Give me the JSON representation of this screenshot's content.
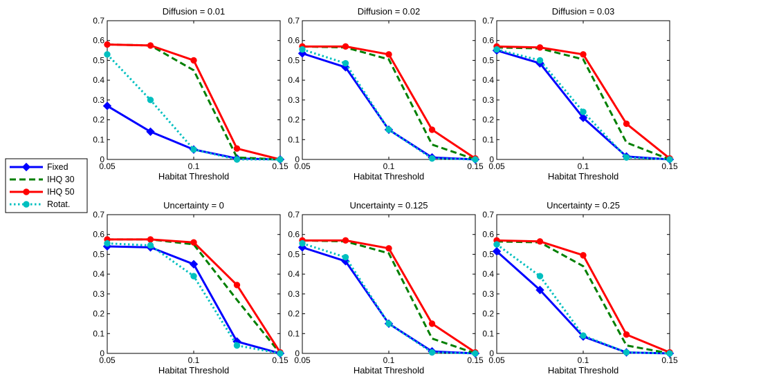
{
  "legend": {
    "placement": "left-middle",
    "entries": [
      {
        "name": "Fixed",
        "color": "#0000ff",
        "style": "solid",
        "marker": "diamond"
      },
      {
        "name": "IHQ 30",
        "color": "#007f00",
        "style": "dashed",
        "marker": "none"
      },
      {
        "name": "IHQ 50",
        "color": "#ff0000",
        "style": "solid",
        "marker": "circle"
      },
      {
        "name": "Rotat.",
        "color": "#00bfbf",
        "style": "dotted",
        "marker": "circle"
      }
    ]
  },
  "chart_data": [
    {
      "type": "line",
      "title": "Diffusion = 0.01",
      "xlabel": "Habitat Threshold",
      "ylabel": "",
      "x": [
        0.05,
        0.075,
        0.1,
        0.125,
        0.15
      ],
      "xlim": [
        0.05,
        0.15
      ],
      "ylim": [
        0,
        0.7
      ],
      "xticks": [
        "0.05",
        "0.1",
        "0.15"
      ],
      "yticks": [
        "0",
        "0.1",
        "0.2",
        "0.3",
        "0.4",
        "0.5",
        "0.6",
        "0.7"
      ],
      "grid": false,
      "series": [
        {
          "name": "Fixed",
          "values": [
            0.27,
            0.14,
            0.05,
            0.005,
            0.0
          ]
        },
        {
          "name": "IHQ 30",
          "values": [
            0.58,
            0.575,
            0.45,
            0.01,
            0.0
          ]
        },
        {
          "name": "IHQ 50",
          "values": [
            0.58,
            0.575,
            0.5,
            0.055,
            0.0
          ]
        },
        {
          "name": "Rotat.",
          "values": [
            0.53,
            0.3,
            0.05,
            0.0,
            0.0
          ]
        }
      ]
    },
    {
      "type": "line",
      "title": "Diffusion = 0.02",
      "xlabel": "Habitat Threshold",
      "ylabel": "",
      "x": [
        0.05,
        0.075,
        0.1,
        0.125,
        0.15
      ],
      "xlim": [
        0.05,
        0.15
      ],
      "ylim": [
        0,
        0.7
      ],
      "xticks": [
        "0.05",
        "0.1",
        "0.15"
      ],
      "yticks": [
        "0",
        "0.1",
        "0.2",
        "0.3",
        "0.4",
        "0.5",
        "0.6",
        "0.7"
      ],
      "grid": false,
      "series": [
        {
          "name": "Fixed",
          "values": [
            0.535,
            0.465,
            0.15,
            0.01,
            0.0
          ]
        },
        {
          "name": "IHQ 30",
          "values": [
            0.57,
            0.565,
            0.505,
            0.075,
            0.0
          ]
        },
        {
          "name": "IHQ 50",
          "values": [
            0.57,
            0.57,
            0.53,
            0.15,
            0.005
          ]
        },
        {
          "name": "Rotat.",
          "values": [
            0.555,
            0.485,
            0.15,
            0.005,
            0.0
          ]
        }
      ]
    },
    {
      "type": "line",
      "title": "Diffusion = 0.03",
      "xlabel": "Habitat Threshold",
      "ylabel": "",
      "x": [
        0.05,
        0.075,
        0.1,
        0.125,
        0.15
      ],
      "xlim": [
        0.05,
        0.15
      ],
      "ylim": [
        0,
        0.7
      ],
      "xticks": [
        "0.05",
        "0.1",
        "0.15"
      ],
      "yticks": [
        "0",
        "0.1",
        "0.2",
        "0.3",
        "0.4",
        "0.5",
        "0.6",
        "0.7"
      ],
      "grid": false,
      "series": [
        {
          "name": "Fixed",
          "values": [
            0.55,
            0.485,
            0.21,
            0.015,
            0.0
          ]
        },
        {
          "name": "IHQ 30",
          "values": [
            0.565,
            0.56,
            0.505,
            0.085,
            0.0
          ]
        },
        {
          "name": "IHQ 50",
          "values": [
            0.57,
            0.565,
            0.53,
            0.18,
            0.005
          ]
        },
        {
          "name": "Rotat.",
          "values": [
            0.555,
            0.5,
            0.24,
            0.01,
            0.0
          ]
        }
      ]
    },
    {
      "type": "line",
      "title": "Uncertainty = 0",
      "xlabel": "Habitat Threshold",
      "ylabel": "",
      "x": [
        0.05,
        0.075,
        0.1,
        0.125,
        0.15
      ],
      "xlim": [
        0.05,
        0.15
      ],
      "ylim": [
        0,
        0.7
      ],
      "xticks": [
        "0.05",
        "0.1",
        "0.15"
      ],
      "yticks": [
        "0",
        "0.1",
        "0.2",
        "0.3",
        "0.4",
        "0.5",
        "0.6",
        "0.7"
      ],
      "grid": false,
      "series": [
        {
          "name": "Fixed",
          "values": [
            0.54,
            0.535,
            0.45,
            0.06,
            0.0
          ]
        },
        {
          "name": "IHQ 30",
          "values": [
            0.575,
            0.575,
            0.55,
            0.27,
            0.0
          ]
        },
        {
          "name": "IHQ 50",
          "values": [
            0.575,
            0.575,
            0.56,
            0.345,
            0.005
          ]
        },
        {
          "name": "Rotat.",
          "values": [
            0.555,
            0.545,
            0.39,
            0.04,
            0.0
          ]
        }
      ]
    },
    {
      "type": "line",
      "title": "Uncertainty = 0.125",
      "xlabel": "Habitat Threshold",
      "ylabel": "",
      "x": [
        0.05,
        0.075,
        0.1,
        0.125,
        0.15
      ],
      "xlim": [
        0.05,
        0.15
      ],
      "ylim": [
        0,
        0.7
      ],
      "xticks": [
        "0.05",
        "0.1",
        "0.15"
      ],
      "yticks": [
        "0",
        "0.1",
        "0.2",
        "0.3",
        "0.4",
        "0.5",
        "0.6",
        "0.7"
      ],
      "grid": false,
      "series": [
        {
          "name": "Fixed",
          "values": [
            0.535,
            0.465,
            0.15,
            0.01,
            0.0
          ]
        },
        {
          "name": "IHQ 30",
          "values": [
            0.57,
            0.565,
            0.505,
            0.075,
            0.0
          ]
        },
        {
          "name": "IHQ 50",
          "values": [
            0.57,
            0.57,
            0.53,
            0.15,
            0.005
          ]
        },
        {
          "name": "Rotat.",
          "values": [
            0.555,
            0.485,
            0.15,
            0.005,
            0.0
          ]
        }
      ]
    },
    {
      "type": "line",
      "title": "Uncertainty = 0.25",
      "xlabel": "Habitat Threshold",
      "ylabel": "",
      "x": [
        0.05,
        0.075,
        0.1,
        0.125,
        0.15
      ],
      "xlim": [
        0.05,
        0.15
      ],
      "ylim": [
        0,
        0.7
      ],
      "xticks": [
        "0.05",
        "0.1",
        "0.15"
      ],
      "yticks": [
        "0",
        "0.1",
        "0.2",
        "0.3",
        "0.4",
        "0.5",
        "0.6",
        "0.7"
      ],
      "grid": false,
      "series": [
        {
          "name": "Fixed",
          "values": [
            0.515,
            0.32,
            0.085,
            0.005,
            0.0
          ]
        },
        {
          "name": "IHQ 30",
          "values": [
            0.565,
            0.56,
            0.44,
            0.04,
            0.0
          ]
        },
        {
          "name": "IHQ 50",
          "values": [
            0.57,
            0.565,
            0.495,
            0.095,
            0.005
          ]
        },
        {
          "name": "Rotat.",
          "values": [
            0.55,
            0.39,
            0.09,
            0.005,
            0.0
          ]
        }
      ]
    }
  ]
}
